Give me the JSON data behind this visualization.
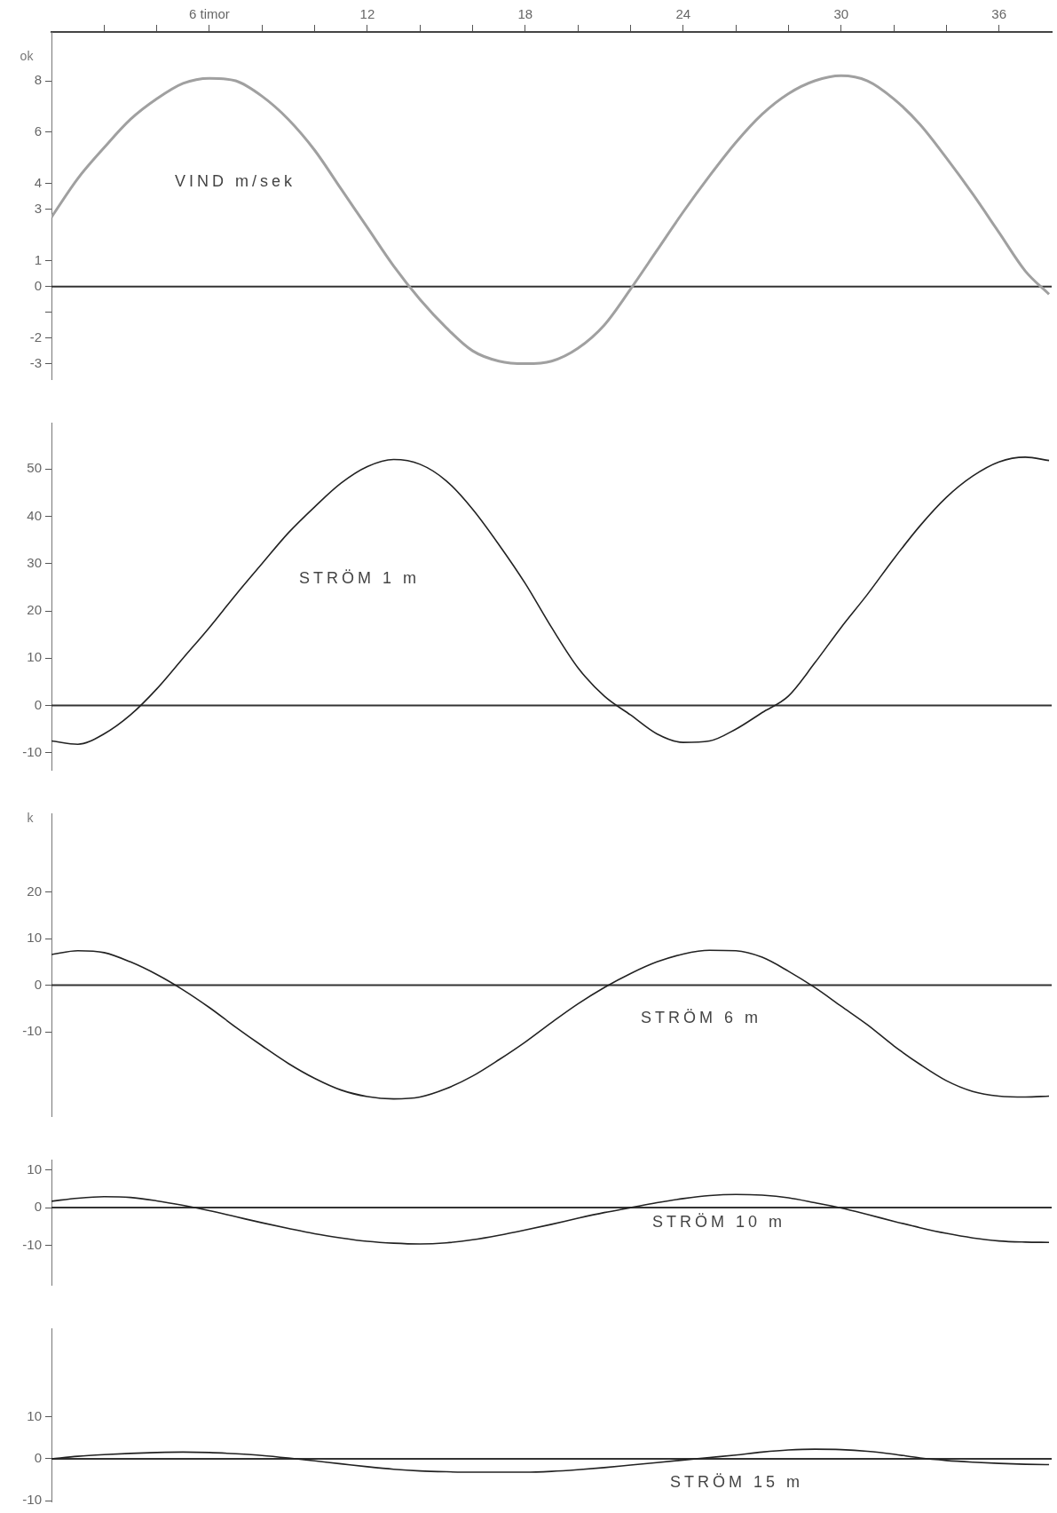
{
  "chart_data": [
    {
      "type": "line",
      "ylabel": "ok",
      "xlim": [
        0,
        38
      ],
      "ylim": [
        -3.6,
        9.9
      ],
      "xticks": [
        {
          "value": 2,
          "label": null
        },
        {
          "value": 4,
          "label": null
        },
        {
          "value": 6,
          "label": "6 timor"
        },
        {
          "value": 8,
          "label": null
        },
        {
          "value": 10,
          "label": null
        },
        12,
        {
          "value": 14,
          "label": null
        },
        {
          "value": 16,
          "label": null
        },
        18,
        {
          "value": 20,
          "label": null
        },
        {
          "value": 22,
          "label": null
        },
        24,
        {
          "value": 26,
          "label": null
        },
        {
          "value": 28,
          "label": null
        },
        30,
        {
          "value": 32,
          "label": null
        },
        {
          "value": 34,
          "label": null
        },
        36
      ],
      "yticks": [
        8,
        6,
        4,
        3,
        1,
        0,
        {
          "value": -1,
          "label": null
        },
        -2,
        -3
      ],
      "x": [
        0,
        1,
        2,
        3,
        4,
        5,
        6,
        7,
        8,
        9,
        10,
        11,
        12,
        13,
        14,
        15,
        16,
        17,
        18,
        19,
        20,
        21,
        22,
        23,
        24,
        25,
        26,
        27,
        28,
        29,
        30,
        31,
        32,
        33,
        34,
        35,
        36,
        37,
        37.9
      ],
      "series": [
        {
          "name": "VIND m/sek",
          "color": "#a0a0a0",
          "values": [
            2.7,
            4.2,
            5.4,
            6.5,
            7.3,
            7.9,
            8.1,
            8.0,
            7.4,
            6.5,
            5.3,
            3.8,
            2.3,
            0.8,
            -0.5,
            -1.6,
            -2.5,
            -2.9,
            -3.0,
            -2.9,
            -2.4,
            -1.5,
            -0.1,
            1.4,
            2.9,
            4.3,
            5.6,
            6.7,
            7.5,
            8.0,
            8.2,
            8.0,
            7.3,
            6.3,
            5.0,
            3.6,
            2.1,
            0.6,
            -0.3
          ]
        }
      ],
      "ref_lines": [
        {
          "axis": "y",
          "value": 0,
          "color": "#333333"
        }
      ],
      "grid": false,
      "legend": false
    },
    {
      "type": "line",
      "xlim": [
        0,
        38
      ],
      "ylim": [
        -13.6,
        59.8
      ],
      "tick_labels": "y",
      "yticks": [
        50,
        40,
        30,
        20,
        10,
        0,
        -10
      ],
      "x": [
        0,
        1,
        2,
        3,
        4,
        5,
        6,
        7,
        8,
        9,
        10,
        11,
        12,
        13,
        14,
        15,
        16,
        17,
        18,
        19,
        20,
        21,
        22,
        23,
        24,
        25,
        26,
        27,
        28,
        29,
        30,
        31,
        32,
        33,
        34,
        35,
        36,
        37,
        37.9
      ],
      "series": [
        {
          "name": "STRÖM 1 m",
          "color": "#222222",
          "values": [
            -7.5,
            -8.2,
            -6.0,
            -2.0,
            3.5,
            10,
            16.5,
            23.4,
            30,
            36.5,
            42,
            47,
            50.5,
            52,
            51,
            47.5,
            41.5,
            34,
            25.8,
            16.5,
            8,
            2,
            -2,
            -6,
            -7.8,
            -7.5,
            -5,
            -1.5,
            2,
            9,
            16.5,
            23.5,
            31,
            38,
            44,
            48.5,
            51.5,
            52.5,
            51.8
          ]
        }
      ],
      "ref_lines": [
        {
          "axis": "y",
          "value": 0,
          "color": "#333333"
        }
      ],
      "grid": false,
      "legend": false
    },
    {
      "type": "line",
      "ylabel": "k",
      "xlim": [
        0,
        38
      ],
      "ylim": [
        -28.1,
        36.9
      ],
      "tick_labels": "y",
      "yticks": [
        20,
        10,
        0,
        -10
      ],
      "x": [
        0,
        1,
        2,
        3,
        4,
        5,
        6,
        7,
        8,
        9,
        10,
        11,
        12,
        13,
        14,
        15,
        16,
        17,
        18,
        19,
        20,
        21,
        22,
        23,
        24,
        25,
        26,
        27,
        28,
        29,
        30,
        31,
        32,
        33,
        34,
        35,
        36,
        37,
        37.9
      ],
      "series": [
        {
          "name": "STRÖM 6 m",
          "color": "#222222",
          "values": [
            6.6,
            7.4,
            7.0,
            5.0,
            2.3,
            -1,
            -4.8,
            -9,
            -13,
            -16.8,
            -20,
            -22.5,
            -23.9,
            -24.4,
            -24,
            -22.2,
            -19.5,
            -16,
            -12.2,
            -8,
            -4,
            -0.5,
            2.5,
            5,
            6.7,
            7.5,
            7.4,
            6,
            3,
            -0.5,
            -4.5,
            -8.5,
            -13,
            -17,
            -20.5,
            -22.8,
            -23.8,
            -24,
            -23.8
          ]
        }
      ],
      "ref_lines": [
        {
          "axis": "y",
          "value": 0,
          "color": "#333333"
        }
      ],
      "grid": false,
      "legend": false
    },
    {
      "type": "line",
      "xlim": [
        0,
        38
      ],
      "ylim": [
        -20.4,
        12.7
      ],
      "tick_labels": "y",
      "yticks": [
        10,
        0,
        -10
      ],
      "x": [
        0,
        1,
        2,
        3,
        4,
        5,
        6,
        7,
        8,
        9,
        10,
        11,
        12,
        13,
        14,
        15,
        16,
        17,
        18,
        19,
        20,
        21,
        22,
        23,
        24,
        25,
        26,
        27,
        28,
        29,
        30,
        31,
        32,
        33,
        34,
        35,
        36,
        37,
        37.9
      ],
      "series": [
        {
          "name": "STRÖM 10 m",
          "color": "#222222",
          "values": [
            1.7,
            2.5,
            2.9,
            2.7,
            1.8,
            0.6,
            -0.8,
            -2.4,
            -4.0,
            -5.5,
            -6.9,
            -8.0,
            -8.9,
            -9.4,
            -9.6,
            -9.3,
            -8.5,
            -7.3,
            -5.9,
            -4.4,
            -2.8,
            -1.3,
            0,
            1.3,
            2.4,
            3.2,
            3.5,
            3.3,
            2.6,
            1.3,
            -0.1,
            -1.8,
            -3.6,
            -5.3,
            -6.8,
            -8.0,
            -8.8,
            -9.1,
            -9.2
          ]
        }
      ],
      "ref_lines": [
        {
          "axis": "y",
          "value": 0,
          "color": "#333333"
        }
      ],
      "grid": false,
      "legend": false
    },
    {
      "type": "line",
      "xlim": [
        0,
        38
      ],
      "ylim": [
        -10.2,
        31.2
      ],
      "tick_labels": "y",
      "yticks": [
        10,
        0,
        -10
      ],
      "x": [
        0,
        1,
        2,
        3,
        4,
        5,
        6,
        7,
        8,
        9,
        10,
        11,
        12,
        13,
        14,
        15,
        16,
        17,
        18,
        19,
        20,
        21,
        22,
        23,
        24,
        25,
        26,
        27,
        28,
        29,
        30,
        31,
        32,
        33,
        34,
        35,
        36,
        37,
        37.9
      ],
      "series": [
        {
          "name": "STRÖM 15 m",
          "color": "#222222",
          "values": [
            0,
            0.6,
            1.0,
            1.3,
            1.5,
            1.6,
            1.5,
            1.2,
            0.8,
            0.2,
            -0.5,
            -1.2,
            -1.9,
            -2.5,
            -2.9,
            -3.1,
            -3.2,
            -3.2,
            -3.2,
            -3.0,
            -2.6,
            -2.1,
            -1.5,
            -0.9,
            -0.3,
            0.3,
            0.9,
            1.6,
            2.1,
            2.3,
            2.2,
            1.8,
            1.1,
            0.2,
            -0.4,
            -0.8,
            -1.1,
            -1.3,
            -1.4
          ]
        }
      ],
      "ref_lines": [
        {
          "axis": "y",
          "value": 0,
          "color": "#333333"
        }
      ],
      "grid": false,
      "legend": false
    }
  ]
}
